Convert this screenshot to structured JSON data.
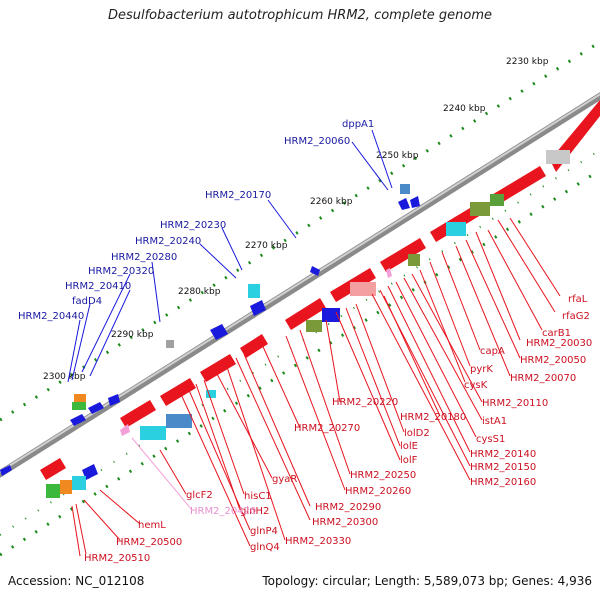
{
  "title": "Desulfobacterium autotrophicum HRM2, complete genome",
  "footer": {
    "accession": "Accession: NC_012108",
    "summary": "Topology: circular; Length: 5,589,073 bp; Genes: 4,936"
  },
  "colors": {
    "forward": "#1a1adc",
    "reverse": "#e8141e",
    "rna": "#f4a0d8",
    "axis": "#777777"
  },
  "kbp_ticks": [
    "2230 kbp",
    "2240 kbp",
    "2250 kbp",
    "2260 kbp",
    "2270 kbp",
    "2280 kbp",
    "2290 kbp",
    "2300 kbp"
  ],
  "top_labels": [
    "dppA1",
    "HRM2_20060",
    "HRM2_20170",
    "HRM2_20230",
    "HRM2_20240",
    "HRM2_20280",
    "HRM2_20320",
    "HRM2_20410",
    "fadD4",
    "HRM2_20440"
  ],
  "bottom_labels": [
    "rfaL",
    "rfaG2",
    "carB1",
    "HRM2_20030",
    "HRM2_20050",
    "HRM2_20070",
    "capA",
    "pyrK",
    "cysK",
    "HRM2_20110",
    "istA1",
    "cysS1",
    "HRM2_20180",
    "lolD2",
    "lolE",
    "lolF",
    "HRM2_20140",
    "HRM2_20150",
    "HRM2_20160",
    "HRM2_20220",
    "HRM2_20270",
    "HRM2_20250",
    "HRM2_20260",
    "HRM2_20290",
    "HRM2_20300",
    "HRM2_20330",
    "gyaR",
    "hisC1",
    "glnH2",
    "glnP4",
    "glnQ4",
    "glcF2",
    "HRM2_20420",
    "hemL",
    "HRM2_20500",
    "HRM2_20510"
  ]
}
